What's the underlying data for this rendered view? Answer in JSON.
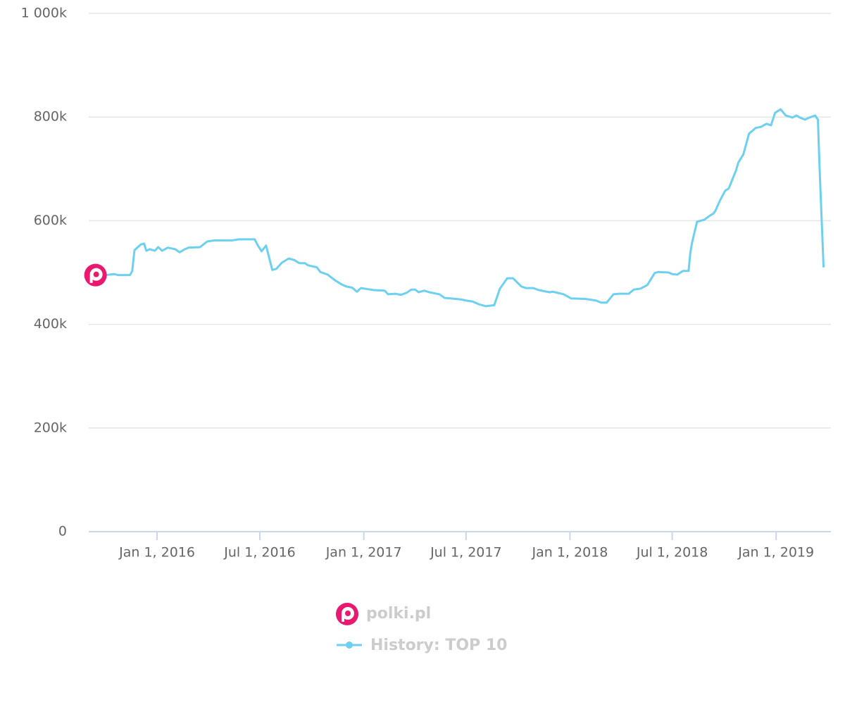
{
  "chart_data": {
    "type": "line",
    "site": "polki.pl",
    "xlim": [
      "2015-09-02",
      "2019-04-08"
    ],
    "xticks": [
      {
        "value": "2016-01-01",
        "label": "Jan 1, 2016"
      },
      {
        "value": "2016-07-01",
        "label": "Jul 1, 2016"
      },
      {
        "value": "2017-01-01",
        "label": "Jan 1, 2017"
      },
      {
        "value": "2017-07-01",
        "label": "Jul 1, 2017"
      },
      {
        "value": "2018-01-01",
        "label": "Jan 1, 2018"
      },
      {
        "value": "2018-07-01",
        "label": "Jul 1, 2018"
      },
      {
        "value": "2019-01-01",
        "label": "Jan 1, 2019"
      }
    ],
    "ylim": [
      0,
      1000000
    ],
    "yticks": [
      0,
      {
        "value": 200000,
        "label": "200k"
      },
      {
        "value": 400000,
        "label": "400k"
      },
      {
        "value": 600000,
        "label": "600k"
      },
      {
        "value": 800000,
        "label": "800k"
      },
      {
        "value": 1000000,
        "label": "1 000k"
      }
    ],
    "grid": true,
    "x": [
      "2015-09-14",
      "2015-10-01",
      "2015-10-17",
      "2015-10-24",
      "2015-11-14",
      "2015-11-18",
      "2015-11-22",
      "2015-12-03",
      "2015-12-09",
      "2015-12-13",
      "2015-12-19",
      "2015-12-28",
      "2016-01-03",
      "2016-01-10",
      "2016-01-20",
      "2016-02-02",
      "2016-02-10",
      "2016-02-19",
      "2016-02-26",
      "2016-03-17",
      "2016-03-30",
      "2016-04-12",
      "2016-05-13",
      "2016-05-25",
      "2016-06-22",
      "2016-06-27",
      "2016-07-04",
      "2016-07-12",
      "2016-07-23",
      "2016-07-30",
      "2016-08-09",
      "2016-08-21",
      "2016-08-31",
      "2016-09-09",
      "2016-09-19",
      "2016-09-24",
      "2016-10-10",
      "2016-10-16",
      "2016-10-29",
      "2016-11-11",
      "2016-11-23",
      "2016-12-01",
      "2016-12-11",
      "2016-12-20",
      "2016-12-27",
      "2017-01-19",
      "2017-02-07",
      "2017-02-13",
      "2017-02-26",
      "2017-03-08",
      "2017-03-18",
      "2017-03-26",
      "2017-04-02",
      "2017-04-08",
      "2017-04-18",
      "2017-04-27",
      "2017-05-15",
      "2017-05-24",
      "2017-06-04",
      "2017-06-22",
      "2017-07-01",
      "2017-07-13",
      "2017-07-23",
      "2017-08-05",
      "2017-08-20",
      "2017-08-24",
      "2017-08-30",
      "2017-09-12",
      "2017-09-22",
      "2017-10-07",
      "2017-10-15",
      "2017-10-28",
      "2017-11-07",
      "2017-11-26",
      "2017-12-02",
      "2017-12-21",
      "2018-01-03",
      "2018-01-28",
      "2018-02-16",
      "2018-02-25",
      "2018-03-07",
      "2018-03-19",
      "2018-03-29",
      "2018-04-15",
      "2018-04-24",
      "2018-05-06",
      "2018-05-18",
      "2018-05-31",
      "2018-06-06",
      "2018-06-25",
      "2018-07-01",
      "2018-07-10",
      "2018-07-20",
      "2018-07-30",
      "2018-08-02",
      "2018-08-05",
      "2018-08-14",
      "2018-08-27",
      "2018-09-06",
      "2018-09-11",
      "2018-09-15",
      "2018-09-24",
      "2018-10-03",
      "2018-10-09",
      "2018-10-22",
      "2018-10-26",
      "2018-11-04",
      "2018-11-14",
      "2018-11-26",
      "2018-12-05",
      "2018-12-15",
      "2018-12-23",
      "2018-12-30",
      "2019-01-09",
      "2019-01-18",
      "2019-01-30",
      "2019-02-06",
      "2019-02-12",
      "2019-02-21",
      "2019-03-01",
      "2019-03-11",
      "2019-03-16",
      "2019-03-19",
      "2019-03-26"
    ],
    "series": [
      {
        "name": "History: TOP 10",
        "color": "#6dd0f0",
        "values": [
          495000,
          495000,
          497000,
          495000,
          495000,
          503000,
          543000,
          554000,
          556000,
          542000,
          545000,
          542000,
          549000,
          542000,
          548000,
          545000,
          539000,
          545000,
          548000,
          549000,
          560000,
          562000,
          562000,
          564000,
          564000,
          553000,
          541000,
          552000,
          505000,
          507000,
          519000,
          527000,
          524000,
          518000,
          518000,
          514000,
          510000,
          501000,
          496000,
          485000,
          477000,
          473000,
          471000,
          463000,
          470000,
          466000,
          465000,
          458000,
          459000,
          457000,
          461000,
          467000,
          467000,
          462000,
          465000,
          462000,
          458000,
          451000,
          450000,
          448000,
          446000,
          444000,
          439000,
          435000,
          437000,
          450000,
          469000,
          489000,
          489000,
          473000,
          470000,
          470000,
          466000,
          462000,
          463000,
          458000,
          450000,
          449000,
          446000,
          442000,
          442000,
          458000,
          459000,
          459000,
          467000,
          469000,
          476000,
          499000,
          501000,
          500000,
          497000,
          496000,
          503000,
          503000,
          537000,
          557000,
          598000,
          602000,
          610000,
          613000,
          618000,
          640000,
          658000,
          662000,
          697000,
          712000,
          728000,
          768000,
          779000,
          781000,
          787000,
          784000,
          808000,
          815000,
          803000,
          799000,
          803000,
          799000,
          795000,
          799000,
          803000,
          795000,
          700000,
          510000
        ]
      }
    ]
  }
}
